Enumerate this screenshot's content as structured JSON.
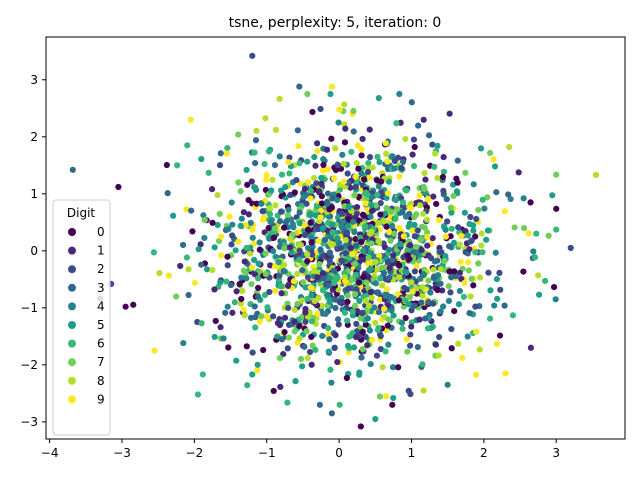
{
  "chart_data": {
    "type": "scatter",
    "title": "tsne, perplexity: 5, iteration: 0",
    "xlabel": "",
    "ylabel": "",
    "xlim": [
      -4.05,
      3.95
    ],
    "ylim": [
      -3.3,
      3.75
    ],
    "x_ticks": [
      -4,
      -3,
      -2,
      -1,
      0,
      1,
      2,
      3
    ],
    "y_ticks": [
      -3,
      -2,
      -1,
      0,
      1,
      2,
      3
    ],
    "grid": false,
    "legend": {
      "title": "Digit",
      "placement": "center-left",
      "entries": [
        "0",
        "1",
        "2",
        "3",
        "4",
        "5",
        "6",
        "7",
        "8",
        "9"
      ]
    },
    "colors": [
      "#440154",
      "#482878",
      "#3e4989",
      "#31688e",
      "#26828e",
      "#1f9e89",
      "#35b779",
      "#6ece58",
      "#b5de2b",
      "#fde725"
    ],
    "distribution": {
      "center": [
        0.2,
        0.0
      ],
      "std": [
        0.95,
        0.95
      ],
      "points_per_digit": 180
    },
    "outliers": [
      {
        "digit": 2,
        "x": -1.2,
        "y": 3.42
      },
      {
        "digit": 3,
        "x": -3.68,
        "y": 1.42
      },
      {
        "digit": 0,
        "x": -3.05,
        "y": 1.12
      },
      {
        "digit": 2,
        "x": 3.2,
        "y": 0.05
      },
      {
        "digit": 8,
        "x": 3.55,
        "y": 1.33
      },
      {
        "digit": 8,
        "x": 2.75,
        "y": -0.43
      },
      {
        "digit": 0,
        "x": 0.3,
        "y": -3.08
      },
      {
        "digit": 3,
        "x": -0.1,
        "y": -2.85
      },
      {
        "digit": 9,
        "x": 0.65,
        "y": -2.55
      },
      {
        "digit": 6,
        "x": -1.95,
        "y": -2.52
      },
      {
        "digit": 9,
        "x": -2.55,
        "y": -1.75
      },
      {
        "digit": 2,
        "x": -3.15,
        "y": -0.58
      },
      {
        "digit": 0,
        "x": -2.95,
        "y": -0.98
      },
      {
        "digit": 9,
        "x": 2.3,
        "y": -2.15
      },
      {
        "digit": 8,
        "x": 2.35,
        "y": 1.82
      },
      {
        "digit": 9,
        "x": -2.05,
        "y": 2.3
      },
      {
        "digit": 9,
        "x": -0.1,
        "y": 2.88
      },
      {
        "digit": 3,
        "x": -0.55,
        "y": 2.88
      },
      {
        "digit": 1,
        "x": 2.65,
        "y": -1.7
      },
      {
        "digit": 4,
        "x": 2.55,
        "y": 0.92
      },
      {
        "digit": 5,
        "x": 0.5,
        "y": -2.95
      },
      {
        "digit": 4,
        "x": 1.5,
        "y": -2.35
      }
    ]
  }
}
